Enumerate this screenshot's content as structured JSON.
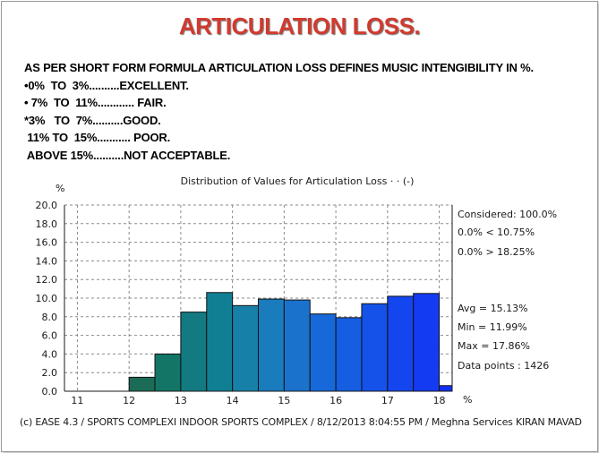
{
  "slide": {
    "title": "ARTICULATION LOSS.",
    "notes": [
      "AS PER SHORT FORM FORMULA ARTICULATION LOSS DEFINES MUSIC INTENGIBILITY IN %.",
      "•0%  TO  3%..........EXCELLENT.",
      "• 7%  TO  11%............ FAIR.",
      "*3%   TO  7%..........GOOD.",
      " 11% TO  15%........... POOR.",
      " ABOVE 15%..........NOT ACCEPTABLE."
    ],
    "footer": "(c) EASE 4.3  / SPORTS COMPLEXI INDOOR SPORTS COMPLEX / 8/12/2013 8:04:55 PM / Meghna Services KIRAN MAVAD"
  },
  "chart_data": {
    "type": "bar",
    "title": "Distribution of Values for Articulation Loss  · · (-)",
    "ylabel": "%",
    "xlabel": "%",
    "ylim": [
      0,
      20
    ],
    "yticks": [
      "0.0",
      "2.0",
      "4.0",
      "6.0",
      "8.0",
      "10.0",
      "12.0",
      "14.0",
      "16.0",
      "18.0",
      "20.0"
    ],
    "xlim": [
      10.75,
      18.25
    ],
    "xticks": [
      "11",
      "12",
      "13",
      "14",
      "15",
      "16",
      "17",
      "18"
    ],
    "bin_width": 0.5,
    "bins": [
      {
        "x0": 12.0,
        "value": 1.5,
        "color": "#1b6b57"
      },
      {
        "x0": 12.5,
        "value": 4.0,
        "color": "#137566"
      },
      {
        "x0": 13.0,
        "value": 8.5,
        "color": "#127a80"
      },
      {
        "x0": 13.5,
        "value": 10.6,
        "color": "#117f93"
      },
      {
        "x0": 14.0,
        "value": 9.2,
        "color": "#1680a8"
      },
      {
        "x0": 14.5,
        "value": 9.9,
        "color": "#1a7bbd"
      },
      {
        "x0": 15.0,
        "value": 9.8,
        "color": "#1a72cc"
      },
      {
        "x0": 15.5,
        "value": 8.3,
        "color": "#1768d8"
      },
      {
        "x0": 16.0,
        "value": 7.9,
        "color": "#155ee2"
      },
      {
        "x0": 16.5,
        "value": 9.4,
        "color": "#1452ea"
      },
      {
        "x0": 17.0,
        "value": 10.2,
        "color": "#1346ef"
      },
      {
        "x0": 17.5,
        "value": 10.5,
        "color": "#133bf2"
      },
      {
        "x0": 18.0,
        "value": 0.6,
        "color": "#1230f4"
      }
    ],
    "stats": {
      "considered": "Considered: 100.0%",
      "below": "0.0%  < 10.75%",
      "above": "0.0%  > 18.25%",
      "avg": "Avg = 15.13%",
      "min": "Min = 11.99%",
      "max": "Max = 17.86%",
      "points": "Data points : 1426"
    }
  }
}
